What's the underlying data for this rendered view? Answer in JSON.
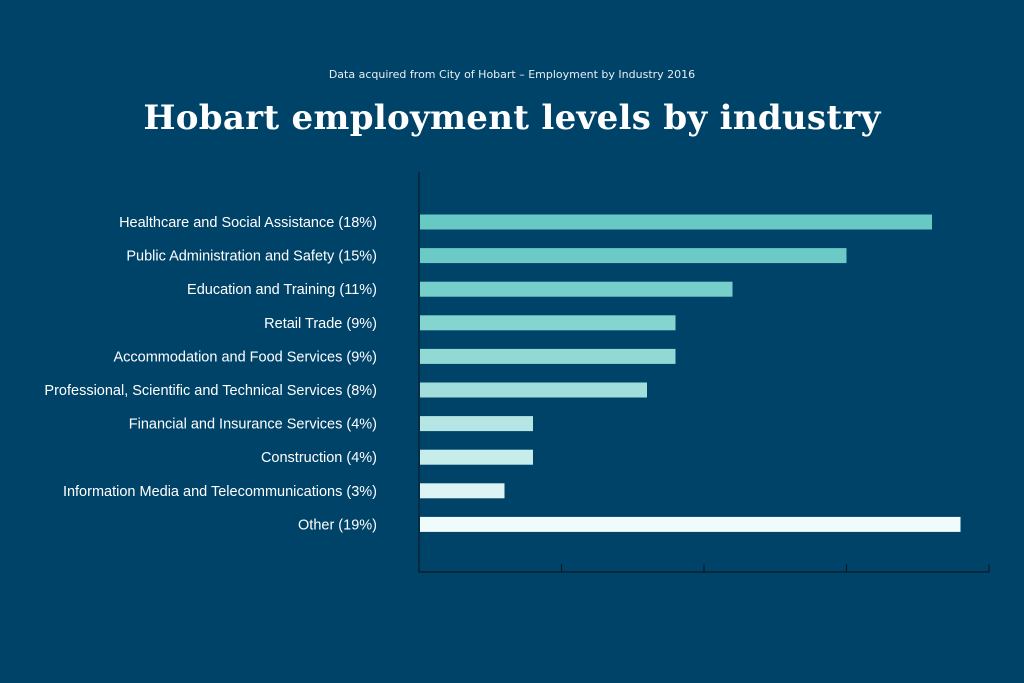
{
  "header": {
    "source": "Data acquired from City of Hobart – Employment by Industry 2016",
    "title": "Hobart employment levels by industry"
  },
  "colors": {
    "background": "#004369",
    "axis": "#0b1a26",
    "bars": [
      "#67c8c4",
      "#6ccac6",
      "#77cfcb",
      "#84d4d0",
      "#92d9d6",
      "#a2dfdc",
      "#b5e6e4",
      "#c7edeb",
      "#dcf4f3",
      "#f0fbfb"
    ]
  },
  "chart_data": {
    "type": "bar",
    "orientation": "horizontal",
    "title": "Hobart employment levels by industry",
    "categories": [
      "Healthcare and Social Assistance (18%)",
      "Public Administration and Safety (15%)",
      "Education and Training (11%)",
      "Retail Trade (9%)",
      "Accommodation and Food Services (9%)",
      "Professional, Scientific and Technical Services (8%)",
      "Financial and Insurance Services (4%)",
      "Construction (4%)",
      "Information Media and Telecommunications (3%)",
      "Other  (19%)"
    ],
    "values": [
      18,
      15,
      11,
      9,
      9,
      8,
      4,
      4,
      3,
      19
    ],
    "xlim": [
      0,
      20
    ],
    "x_ticks": [
      0,
      5,
      10,
      15,
      20
    ],
    "tick_labels_shown": false,
    "grid": false,
    "legend": "none"
  }
}
